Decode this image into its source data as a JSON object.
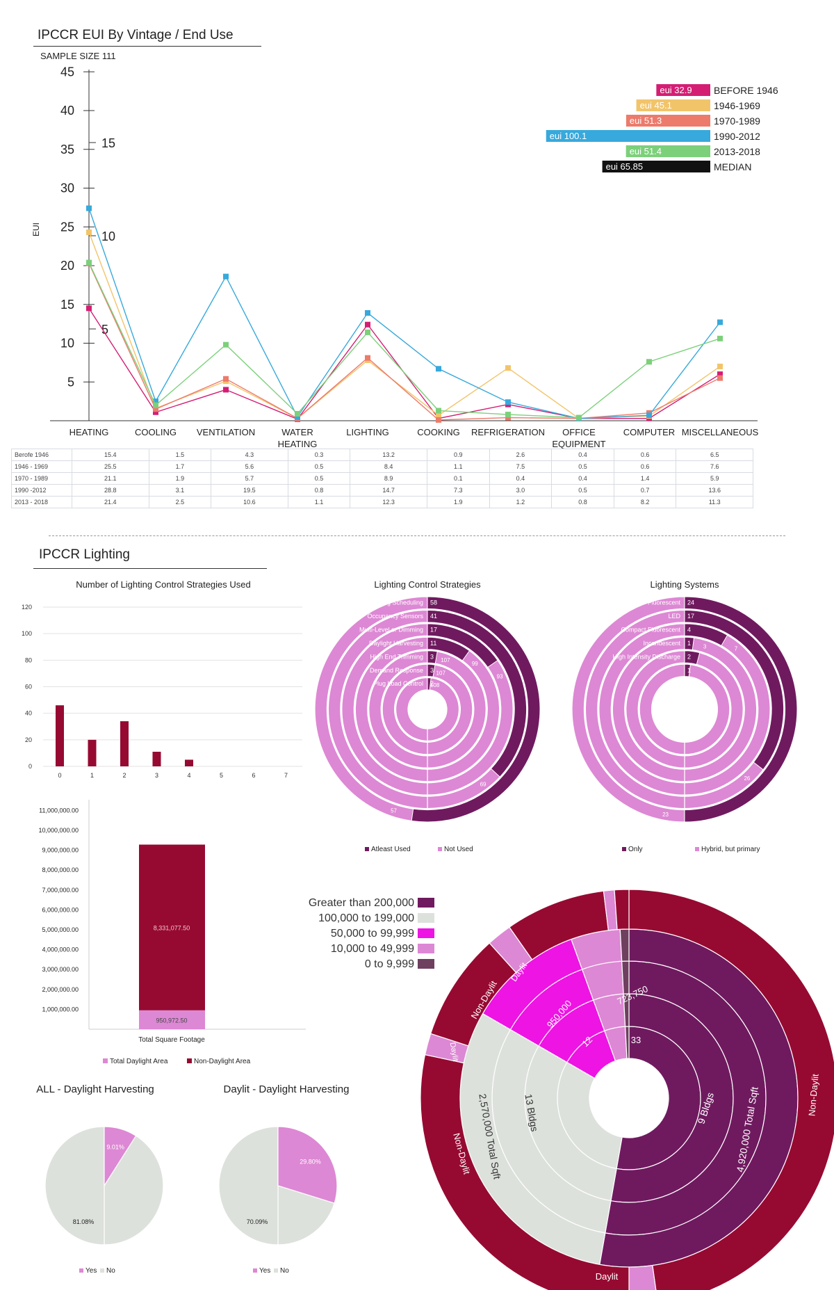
{
  "section1": {
    "title": "IPCCR EUI By Vintage / End Use",
    "sample_size": "SAMPLE SIZE 111"
  },
  "section2": {
    "title": "IPCCR Lighting"
  },
  "colors": {
    "before1946": "#d41e74",
    "v1946": "#f2c46a",
    "v1970": "#ec7b6c",
    "v1990": "#37a9dc",
    "v2013": "#7cd07a",
    "median": "#111111",
    "dark_purple": "#6f1a5f",
    "pink": "#dd88d4",
    "maroon": "#960a31",
    "grey_green": "#dde1dc",
    "magenta": "#ee14e3",
    "mauve": "#6e3f5f"
  },
  "chart_data": [
    {
      "type": "line",
      "id": "eui_line",
      "categories": [
        "HEATING",
        "COOLING",
        "VENTILATION",
        "WATER HEATING",
        "LIGHTING",
        "COOKING",
        "REFRIGERATION",
        "OFFICE EQUIPMENT",
        "COMPUTER",
        "MISCELLANEOUS"
      ],
      "ylabel": "EUI",
      "yticks": [
        "45",
        "40",
        "35",
        "30",
        "25",
        "20",
        "15",
        "10",
        "5"
      ],
      "secondary_ticks": [
        "15",
        "10",
        "5"
      ],
      "ylim": [
        0,
        45
      ],
      "series": [
        {
          "name": "BEFORE 1946",
          "color": "#d41e74",
          "values": [
            14.5,
            1.1,
            4,
            0.2,
            12.4,
            0.3,
            2.1,
            0.3,
            0.3,
            6
          ]
        },
        {
          "name": "1946-1969",
          "color": "#f2c46a",
          "values": [
            24.3,
            1.6,
            5.1,
            0.3,
            7.8,
            0.7,
            6.8,
            0.3,
            0.6,
            7
          ]
        },
        {
          "name": "1970-1989",
          "color": "#ec7b6c",
          "values": [
            20.3,
            1.5,
            5.4,
            0.3,
            8.1,
            0.1,
            0.4,
            0.3,
            1,
            5.5
          ]
        },
        {
          "name": "1990-2012",
          "color": "#37a9dc",
          "values": [
            27.4,
            2.5,
            18.6,
            0.5,
            13.9,
            6.7,
            2.4,
            0.3,
            0.7,
            12.7
          ]
        },
        {
          "name": "2013-2018",
          "color": "#7cd07a",
          "values": [
            20.4,
            2,
            9.8,
            0.9,
            11.4,
            1.3,
            0.8,
            0.4,
            7.6,
            10.6
          ]
        }
      ]
    },
    {
      "type": "bar",
      "id": "eui_legend_bars",
      "series": [
        {
          "name": "BEFORE 1946",
          "label": "eui 32.9",
          "value": 32.9,
          "color": "#d41e74"
        },
        {
          "name": "1946-1969",
          "label": "eui 45.1",
          "value": 45.1,
          "color": "#f2c46a"
        },
        {
          "name": "1970-1989",
          "label": "eui 51.3",
          "value": 51.3,
          "color": "#ec7b6c"
        },
        {
          "name": "1990-2012",
          "label": "eui 100.1",
          "value": 100.1,
          "color": "#37a9dc"
        },
        {
          "name": "2013-2018",
          "label": "eui 51.4",
          "value": 51.4,
          "color": "#7cd07a"
        },
        {
          "name": "MEDIAN",
          "label": "eui 65.85",
          "value": 65.85,
          "color": "#111111"
        }
      ]
    },
    {
      "type": "table",
      "id": "eui_table",
      "rows": [
        {
          "label": "Berofe 1946",
          "values": [
            "15.4",
            "1.5",
            "4.3",
            "0.3",
            "13.2",
            "0.9",
            "2.6",
            "0.4",
            "0.6",
            "6.5"
          ]
        },
        {
          "label": "1946 - 1969",
          "values": [
            "25.5",
            "1.7",
            "5.6",
            "0.5",
            "8.4",
            "1.1",
            "7.5",
            "0.5",
            "0.6",
            "7.6"
          ]
        },
        {
          "label": "1970 - 1989",
          "values": [
            "21.1",
            "1.9",
            "5.7",
            "0.5",
            "8.9",
            "0.1",
            "0.4",
            "0.4",
            "1.4",
            "5.9"
          ]
        },
        {
          "label": "1990 -2012",
          "values": [
            "28.8",
            "3.1",
            "19.5",
            "0.8",
            "14.7",
            "7.3",
            "3.0",
            "0.5",
            "0.7",
            "13.6"
          ]
        },
        {
          "label": "2013 - 2018",
          "values": [
            "21.4",
            "2.5",
            "10.6",
            "1.1",
            "12.3",
            "1.9",
            "1.2",
            "0.8",
            "8.2",
            "11.3"
          ]
        }
      ]
    },
    {
      "type": "bar",
      "id": "strategies_count",
      "title": "Number of Lighting Control Strategies Used",
      "categories": [
        "0",
        "1",
        "2",
        "3",
        "4",
        "5",
        "6",
        "7"
      ],
      "values": [
        46,
        20,
        34,
        11,
        5,
        0,
        0,
        0
      ],
      "yticks": [
        "120",
        "100",
        "80",
        "60",
        "40",
        "20",
        "0"
      ],
      "ylim": [
        0,
        120
      ]
    },
    {
      "type": "bar",
      "id": "square_footage",
      "xlabel": "Total Square Footage",
      "series": [
        {
          "name": "Total Daylight Area",
          "value": 950972.5,
          "label": "950,972.50"
        },
        {
          "name": "Non-Daylight Area",
          "value": 8331077.5,
          "label": "8,331,077.50"
        }
      ],
      "yticks": [
        "11,000,000.00",
        "10,000,000.00",
        "9,000,000.00",
        "8,000,000.00",
        "7,000,000.00",
        "6,000,000.00",
        "5,000,000.00",
        "4,000,000.00",
        "3,000,000.00",
        "2,000,000.00",
        "1,000,000.00"
      ],
      "ylim": [
        0,
        11000000
      ],
      "legend": [
        "Total Daylight Area",
        "Non-Daylight Area"
      ]
    },
    {
      "type": "pie",
      "id": "control_strategies_radial",
      "title": "Lighting Control Strategies",
      "legend": [
        "Atleast Used",
        "Not Used"
      ],
      "rings": [
        {
          "label": "Lighting Scheduling",
          "used": 58,
          "not_used": "57"
        },
        {
          "label": "Occupancy Sensors",
          "used": 41,
          "not_used": "69"
        },
        {
          "label": "Multi-Level or Dimming",
          "used": 17,
          "not_used": "93"
        },
        {
          "label": "Daylight Harvesting",
          "used": 11,
          "not_used": "99"
        },
        {
          "label": "High End Trimming",
          "used": 3,
          "not_used": "107"
        },
        {
          "label": "Demand Response",
          "used": 3,
          "not_used": "107"
        },
        {
          "label": "Plug Load Control",
          "used": 2,
          "not_used": "108"
        }
      ]
    },
    {
      "type": "pie",
      "id": "lighting_systems_radial",
      "title": "Lighting Systems",
      "legend": [
        "Only",
        "Hybrid, but primary"
      ],
      "rings": [
        {
          "label": "Fluorescent",
          "only": 24,
          "hybrid": "23"
        },
        {
          "label": "LED",
          "only": 17,
          "hybrid": "26"
        },
        {
          "label": "Compact Fluorescent",
          "only": 4,
          "hybrid": "7"
        },
        {
          "label": "Incandescent",
          "only": 1,
          "hybrid": "3"
        },
        {
          "label": "High Intensity Discharge",
          "only": 2,
          "hybrid": ""
        },
        {
          "label": "",
          "only": 1,
          "hybrid": ""
        }
      ]
    },
    {
      "type": "pie",
      "id": "all_daylight_harvesting",
      "title": "ALL - Daylight Harvesting",
      "labels": [
        "Yes",
        "No"
      ],
      "values": [
        9.01,
        81.08
      ],
      "value_labels": [
        "9.01%",
        "81.08%"
      ]
    },
    {
      "type": "pie",
      "id": "daylit_daylight_harvesting",
      "title": "Daylit - Daylight Harvesting",
      "labels": [
        "Yes",
        "No"
      ],
      "values": [
        29.8,
        70.09
      ],
      "value_labels": [
        "29.80%",
        "70.09%"
      ]
    },
    {
      "type": "pie",
      "id": "building_size_sunburst",
      "legend": [
        "Greater than 200,000",
        "100,000 to 199,000",
        "50,000 to 99,999",
        "10,000 to 49,999",
        "0 to 9,999"
      ],
      "labels": {
        "bldgs_a": "9 Bldgs",
        "sqft_a": "4,920,000 Total Sqft",
        "bldgs_b": "13 Bldgs",
        "sqft_b": "2,570,000 Total Sqft",
        "bldgs_c": "12",
        "sqft_c": "950,000",
        "bldgs_d": "33",
        "sqft_d": "723,750",
        "non_daylit": "Non-Daylit",
        "daylit": "Daylit"
      }
    }
  ]
}
